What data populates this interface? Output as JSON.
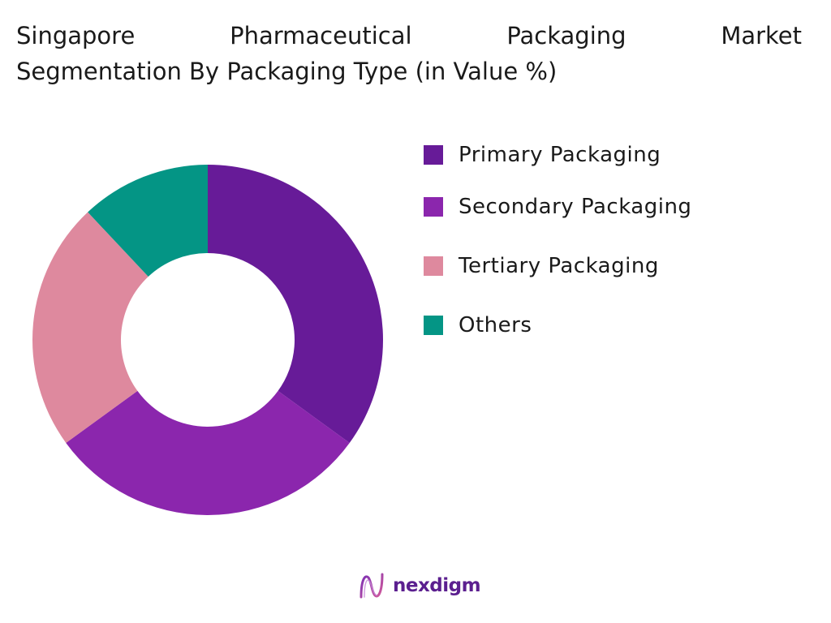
{
  "title_line1_words": [
    "Singapore",
    "Pharmaceutical",
    "Packaging",
    "Market"
  ],
  "title_line2": "Segmentation By Packaging Type (in Value %)",
  "chart_data": {
    "type": "pie",
    "donut": true,
    "title": "Singapore Pharmaceutical Packaging Market Segmentation By Packaging Type (in Value %)",
    "legend_position": "right",
    "categories": [
      "Primary Packaging",
      "Secondary Packaging",
      "Tertiary Packaging",
      "Others"
    ],
    "values": [
      35,
      30,
      23,
      12
    ],
    "colors": [
      "#671b98",
      "#8b26ad",
      "#de899e",
      "#049585"
    ]
  },
  "brand": {
    "name": "nexdigm",
    "logo_icon": "nexdigm-wave-icon",
    "color": "#5b1f8f"
  }
}
